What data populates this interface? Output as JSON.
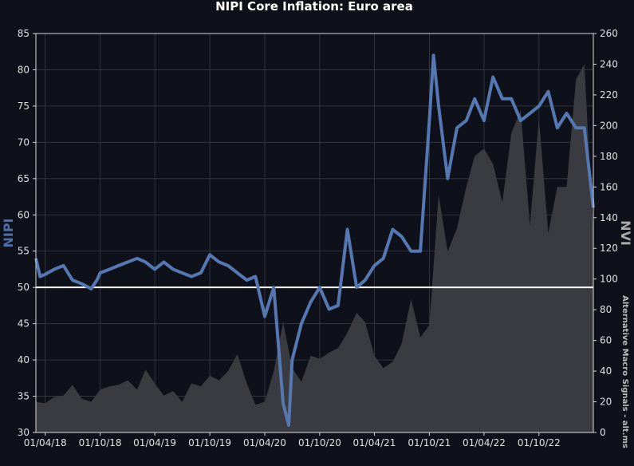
{
  "chart_data": {
    "type": "line",
    "title": "NIPI Core Inflation: Euro area",
    "ylabel_left": "NIPI",
    "ylabel_right": "NVI",
    "watermark": "Alternative Macro Signals - alt.ms",
    "x_start": "2018-03-01",
    "x_end": "2023-03-31",
    "x_ticks": [
      "01/04/18",
      "01/10/18",
      "01/04/19",
      "01/10/19",
      "01/04/20",
      "01/10/20",
      "01/04/21",
      "01/10/21",
      "01/04/22",
      "01/10/22"
    ],
    "y_left": {
      "min": 30,
      "max": 85,
      "ticks": [
        30,
        35,
        40,
        45,
        50,
        55,
        60,
        65,
        70,
        75,
        80,
        85
      ]
    },
    "y_right": {
      "min": 0,
      "max": 260,
      "ticks": [
        0,
        20,
        40,
        60,
        80,
        100,
        120,
        140,
        160,
        180,
        200,
        220,
        240,
        260
      ]
    },
    "reference_line": 50,
    "grid": true,
    "colors": {
      "background": "#0f111a",
      "plot_area": "#0f111a",
      "nipi_line": "#5578b2",
      "nvi_area": "#393b40",
      "reference": "#ffffff",
      "grid": "#3a3d46"
    },
    "series": [
      {
        "name": "NIPI",
        "axis": "left",
        "kind": "line",
        "x": [
          "2018-03-01",
          "2018-03-15",
          "2018-04-01",
          "2018-05-01",
          "2018-06-01",
          "2018-07-01",
          "2018-08-01",
          "2018-09-01",
          "2018-09-20",
          "2018-10-01",
          "2018-11-01",
          "2018-12-01",
          "2019-01-01",
          "2019-02-01",
          "2019-03-01",
          "2019-04-01",
          "2019-05-01",
          "2019-06-01",
          "2019-07-01",
          "2019-08-01",
          "2019-09-01",
          "2019-10-01",
          "2019-11-01",
          "2019-12-01",
          "2020-01-01",
          "2020-02-01",
          "2020-03-01",
          "2020-04-01",
          "2020-05-01",
          "2020-06-01",
          "2020-06-20",
          "2020-07-01",
          "2020-08-01",
          "2020-09-01",
          "2020-10-01",
          "2020-11-01",
          "2020-12-01",
          "2021-01-01",
          "2021-02-01",
          "2021-03-01",
          "2021-04-01",
          "2021-05-01",
          "2021-06-01",
          "2021-07-01",
          "2021-08-01",
          "2021-09-01",
          "2021-10-01",
          "2021-10-15",
          "2021-11-01",
          "2021-12-01",
          "2022-01-01",
          "2022-02-01",
          "2022-03-01",
          "2022-04-01",
          "2022-05-01",
          "2022-06-01",
          "2022-07-01",
          "2022-08-01",
          "2022-09-01",
          "2022-10-01",
          "2022-11-01",
          "2022-12-01",
          "2023-01-01",
          "2023-02-01",
          "2023-03-01",
          "2023-03-31"
        ],
        "values": [
          54,
          51.5,
          51.8,
          52.5,
          53,
          51,
          50.5,
          49.8,
          51,
          52,
          52.5,
          53,
          53.5,
          54,
          53.5,
          52.5,
          53.5,
          52.5,
          52,
          51.5,
          52,
          54.5,
          53.5,
          53,
          52,
          51,
          51.5,
          46,
          50,
          34,
          31,
          40,
          45,
          48,
          50,
          47,
          47.5,
          58,
          50,
          51,
          53,
          54,
          58,
          57,
          55,
          55,
          73,
          82,
          75,
          65,
          72,
          73,
          76,
          73,
          79,
          76,
          76,
          73,
          74,
          75,
          77,
          72,
          74,
          72,
          72,
          61
        ]
      },
      {
        "name": "NVI",
        "axis": "right",
        "kind": "area",
        "x": [
          "2018-03-01",
          "2018-04-01",
          "2018-05-01",
          "2018-06-01",
          "2018-07-01",
          "2018-08-01",
          "2018-09-01",
          "2018-10-01",
          "2018-11-01",
          "2018-12-01",
          "2019-01-01",
          "2019-02-01",
          "2019-03-01",
          "2019-04-01",
          "2019-05-01",
          "2019-06-01",
          "2019-07-01",
          "2019-08-01",
          "2019-09-01",
          "2019-10-01",
          "2019-11-01",
          "2019-12-01",
          "2020-01-01",
          "2020-02-01",
          "2020-03-01",
          "2020-04-01",
          "2020-05-01",
          "2020-06-01",
          "2020-07-01",
          "2020-08-01",
          "2020-09-01",
          "2020-10-01",
          "2020-11-01",
          "2020-12-01",
          "2021-01-01",
          "2021-02-01",
          "2021-03-01",
          "2021-04-01",
          "2021-05-01",
          "2021-06-01",
          "2021-07-01",
          "2021-08-01",
          "2021-09-01",
          "2021-10-01",
          "2021-11-01",
          "2021-12-01",
          "2022-01-01",
          "2022-02-01",
          "2022-03-01",
          "2022-04-01",
          "2022-05-01",
          "2022-06-01",
          "2022-07-01",
          "2022-08-01",
          "2022-09-01",
          "2022-10-01",
          "2022-11-01",
          "2022-12-01",
          "2023-01-01",
          "2023-02-01",
          "2023-03-01",
          "2023-03-31"
        ],
        "values": [
          20,
          19,
          23,
          24,
          31,
          22,
          20,
          28,
          30,
          31,
          34,
          28,
          41,
          32,
          24,
          27,
          20,
          32,
          30,
          37,
          34,
          40,
          51,
          32,
          18,
          20,
          40,
          72,
          42,
          33,
          50,
          48,
          52,
          55,
          65,
          78,
          72,
          50,
          42,
          46,
          58,
          87,
          62,
          70,
          155,
          118,
          133,
          160,
          180,
          185,
          175,
          150,
          195,
          210,
          135,
          205,
          130,
          160,
          160,
          230,
          240,
          130
        ]
      }
    ]
  }
}
